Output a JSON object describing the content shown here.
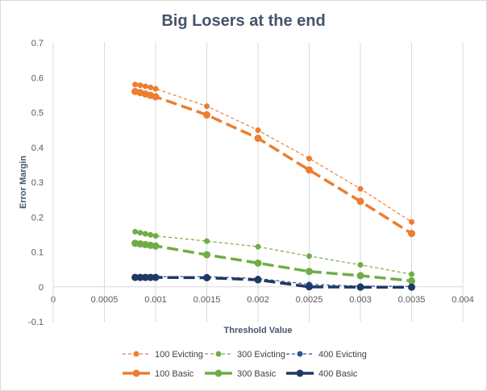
{
  "chart_data": {
    "type": "line",
    "title": "Big Losers at the end",
    "xlabel": "Threshold Value",
    "ylabel": "Error Margin",
    "xlim": [
      0,
      0.004
    ],
    "ylim": [
      -0.1,
      0.7
    ],
    "xticks": [
      "0",
      "0.0005",
      "0.001",
      "0.0015",
      "0.002",
      "0.0025",
      "0.003",
      "0.0035",
      "0.004"
    ],
    "yticks": [
      "-0.1",
      "0",
      "0.1",
      "0.2",
      "0.3",
      "0.4",
      "0.5",
      "0.6",
      "0.7"
    ],
    "grid": "vertical",
    "legend_position": "bottom",
    "x": [
      0.0008,
      0.00085,
      0.0009,
      0.00095,
      0.001,
      0.0015,
      0.002,
      0.0025,
      0.003,
      0.0035
    ],
    "series": [
      {
        "name": "100 Evicting",
        "color": "#ed7d31",
        "style": "thin-dashed",
        "values": [
          0.58,
          0.578,
          0.575,
          0.572,
          0.568,
          0.518,
          0.449,
          0.368,
          0.281,
          0.186
        ]
      },
      {
        "name": "300 Evicting",
        "color": "#70ad47",
        "style": "thin-dashed",
        "values": [
          0.158,
          0.155,
          0.152,
          0.149,
          0.146,
          0.131,
          0.115,
          0.088,
          0.063,
          0.036
        ]
      },
      {
        "name": "400 Evicting",
        "color": "#2f5597",
        "style": "thin-dashed",
        "values": [
          0.029,
          0.029,
          0.029,
          0.029,
          0.029,
          0.029,
          0.024,
          0.007,
          0.002,
          0.001
        ]
      },
      {
        "name": "100 Basic",
        "color": "#ed7d31",
        "style": "thick-dashed",
        "values": [
          0.56,
          0.557,
          0.553,
          0.549,
          0.545,
          0.493,
          0.426,
          0.335,
          0.245,
          0.153
        ]
      },
      {
        "name": "300 Basic",
        "color": "#70ad47",
        "style": "thick-dashed",
        "values": [
          0.125,
          0.123,
          0.121,
          0.119,
          0.117,
          0.092,
          0.068,
          0.044,
          0.032,
          0.017
        ]
      },
      {
        "name": "400 Basic",
        "color": "#1f3864",
        "style": "thick-dashed",
        "values": [
          0.027,
          0.027,
          0.027,
          0.027,
          0.027,
          0.026,
          0.02,
          0.0,
          -0.001,
          -0.001
        ]
      }
    ]
  }
}
